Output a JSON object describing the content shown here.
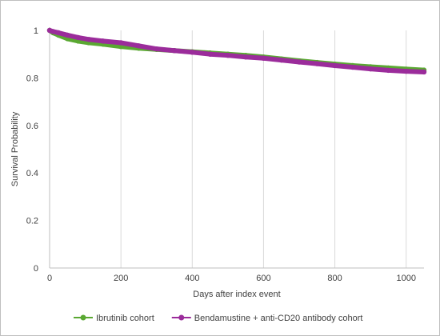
{
  "chart_data": {
    "type": "line",
    "title": "",
    "xlabel": "Days after index event",
    "ylabel": "Survival  Probability",
    "xlim": [
      0,
      1050
    ],
    "ylim": [
      0,
      1
    ],
    "xticks": [
      0,
      200,
      400,
      600,
      800,
      1000
    ],
    "yticks": [
      0,
      0.2,
      0.4,
      0.6,
      0.8,
      1
    ],
    "grid": "vertical",
    "legend": "bottom",
    "series": [
      {
        "name": "Ibrutinib cohort",
        "color": "#5aa832",
        "x": [
          0,
          10,
          25,
          50,
          80,
          110,
          150,
          200,
          250,
          300,
          350,
          400,
          450,
          500,
          550,
          600,
          650,
          700,
          750,
          800,
          850,
          900,
          950,
          1000,
          1050
        ],
        "y": [
          1.0,
          0.99,
          0.98,
          0.965,
          0.955,
          0.948,
          0.942,
          0.932,
          0.925,
          0.92,
          0.915,
          0.91,
          0.905,
          0.9,
          0.895,
          0.888,
          0.88,
          0.872,
          0.865,
          0.858,
          0.852,
          0.847,
          0.842,
          0.837,
          0.833
        ]
      },
      {
        "name": "Bendamustine + anti-CD20 antibody cohort",
        "color": "#9b2c9b",
        "x": [
          0,
          10,
          25,
          50,
          80,
          110,
          150,
          200,
          250,
          300,
          350,
          400,
          450,
          500,
          550,
          600,
          650,
          700,
          750,
          800,
          850,
          900,
          950,
          1000,
          1050
        ],
        "y": [
          1.0,
          0.995,
          0.99,
          0.98,
          0.97,
          0.962,
          0.955,
          0.948,
          0.935,
          0.922,
          0.915,
          0.908,
          0.9,
          0.895,
          0.888,
          0.883,
          0.875,
          0.867,
          0.86,
          0.852,
          0.845,
          0.838,
          0.832,
          0.828,
          0.825
        ]
      }
    ]
  }
}
